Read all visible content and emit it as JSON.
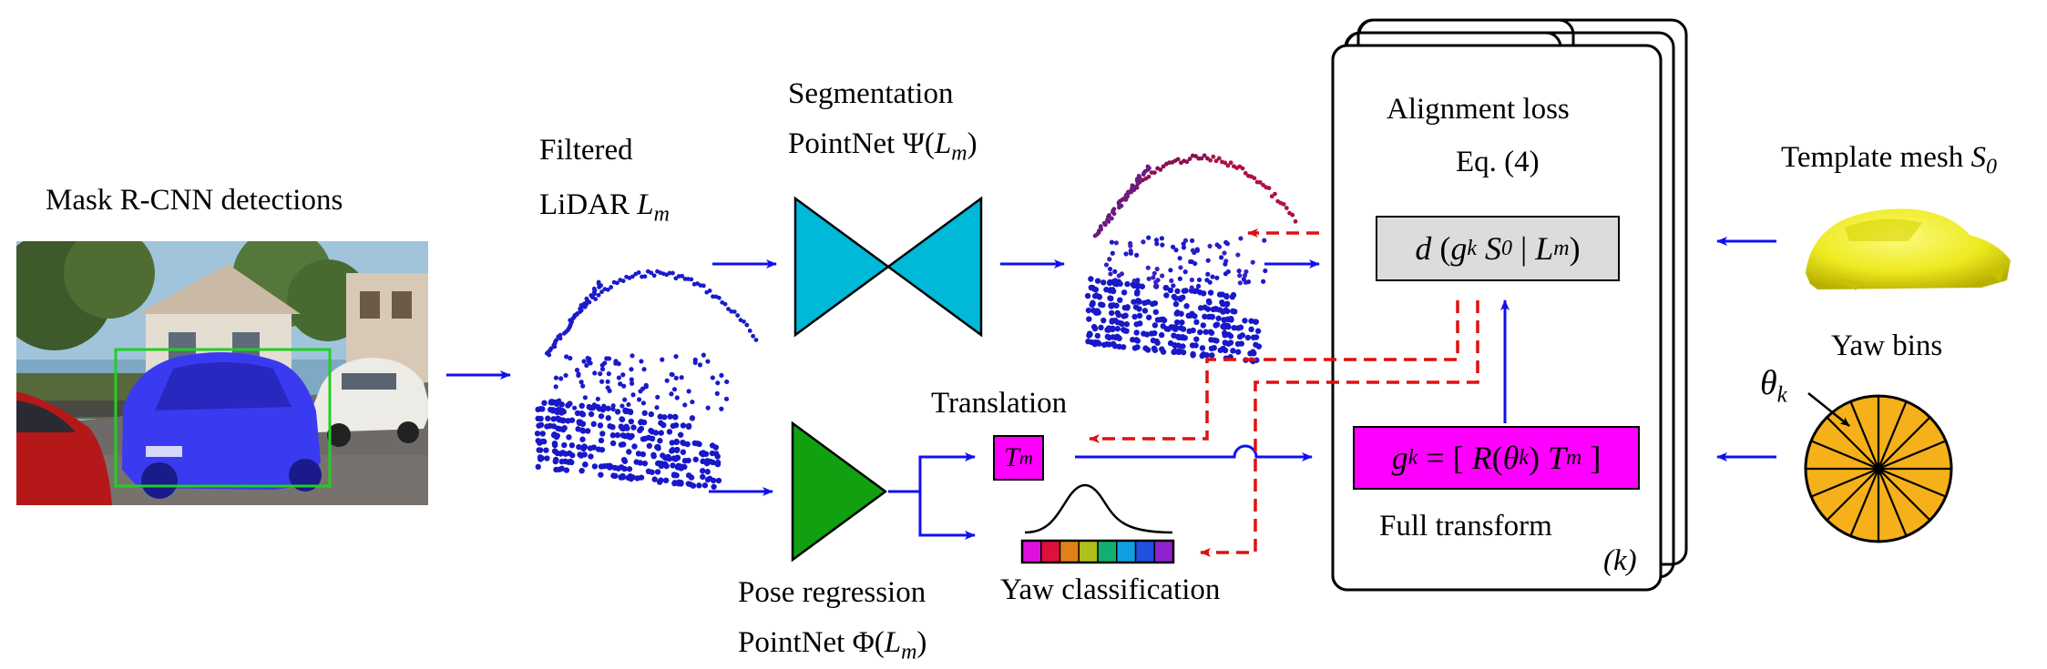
{
  "labels": {
    "mask_rcnn": "Mask R-CNN detections",
    "filtered_line1": "Filtered",
    "filtered_line2_prefix": "LiDAR ",
    "filtered_line2_var": "L",
    "filtered_line2_sub": "m",
    "seg_line1": "Segmentation",
    "seg_line2_prefix": "PointNet Ψ(",
    "seg_line2_var": "L",
    "seg_line2_sub": "m",
    "seg_line2_suffix": ")",
    "pose_line1": "Pose regression",
    "pose_line2_prefix": "PointNet Φ(",
    "pose_line2_var": "L",
    "pose_line2_sub": "m",
    "pose_line2_suffix": ")",
    "translation": "Translation",
    "yaw_classification": "Yaw classification",
    "alignment_line1": "Alignment loss",
    "alignment_line2": "Eq. (4)",
    "full_transform": "Full transform",
    "k_label": "(k)",
    "template_prefix": "Template mesh ",
    "template_var": "S",
    "template_sub": "0",
    "yaw_bins": "Yaw bins",
    "theta_var": "θ",
    "theta_sub": "k"
  },
  "equations": {
    "loss": {
      "d": "d",
      "open": "(",
      "g": "g",
      "k1": "k",
      "S": "S",
      "zero": "0",
      "bar": "|",
      "L": "L",
      "m": "m",
      "close": ")"
    },
    "transform": {
      "g": "g",
      "k1": "k",
      "eq": "= [",
      "R": "R",
      "open": "(",
      "theta": "θ",
      "k2": "k",
      "close": ")",
      "T": "T",
      "m": "m",
      "end": "]"
    },
    "tm": {
      "T": "T",
      "m": "m"
    }
  },
  "colors": {
    "blue_arrow": "#1010ee",
    "red_dash": "#e01010",
    "segmentation_net": "#00b8d8",
    "pose_net": "#10a010",
    "magenta": "#ff00ff",
    "loss_box": "#dcdcdc",
    "yaw_wheel": "#f5b01a",
    "template_mesh": "#f0ee30",
    "car_mask": "#3a3af0",
    "bbox": "#20d020"
  },
  "yaw_bar_colors": [
    "#e010e0",
    "#e0103c",
    "#e08018",
    "#b0c018",
    "#10b070",
    "#10a0e0",
    "#2050e0",
    "#9020d0"
  ],
  "yaw_bins_count": 16
}
